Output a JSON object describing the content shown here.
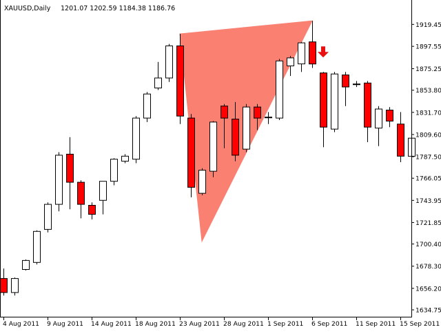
{
  "header": {
    "symbol": "XAUUSD,Daily",
    "ohlc": "1201.07 1202.59 1184.38 1186.76"
  },
  "colors": {
    "bull_body": "#ffffff",
    "bear_body": "#ff0000",
    "candle_outline": "#000000",
    "triangle_fill": "#fa8072",
    "arrow": "#e81010",
    "axis": "#000000",
    "background": "#ffffff"
  },
  "chart_data": {
    "type": "candlestick",
    "title": "",
    "xlabel": "",
    "ylabel": "",
    "ylim": [
      1634.75,
      1930
    ],
    "grid": false,
    "y_ticks": [
      "1919.45",
      "1897.55",
      "1875.25",
      "1853.80",
      "1831.70",
      "1809.60",
      "1787.50",
      "1766.05",
      "1743.95",
      "1721.85",
      "1700.40",
      "1678.30",
      "1656.20",
      "1634.75"
    ],
    "x_ticks": [
      {
        "label": "4 Aug 2011",
        "index": 0
      },
      {
        "label": "9 Aug 2011",
        "index": 4
      },
      {
        "label": "14 Aug 2011",
        "index": 8
      },
      {
        "label": "18 Aug 2011",
        "index": 12
      },
      {
        "label": "23 Aug 2011",
        "index": 16
      },
      {
        "label": "28 Aug 2011",
        "index": 20
      },
      {
        "label": "1 Sep 2011",
        "index": 24
      },
      {
        "label": "6 Sep 2011",
        "index": 28
      },
      {
        "label": "11 Sep 2011",
        "index": 32
      },
      {
        "label": "15 Sep 2011",
        "index": 36
      }
    ],
    "candles": [
      {
        "o": 1666,
        "h": 1676,
        "l": 1649,
        "c": 1652
      },
      {
        "o": 1652,
        "h": 1667,
        "l": 1649,
        "c": 1666
      },
      {
        "o": 1675,
        "h": 1685,
        "l": 1674,
        "c": 1684
      },
      {
        "o": 1682,
        "h": 1714,
        "l": 1680,
        "c": 1713
      },
      {
        "o": 1715,
        "h": 1742,
        "l": 1712,
        "c": 1740
      },
      {
        "o": 1740,
        "h": 1792,
        "l": 1733,
        "c": 1789
      },
      {
        "o": 1790,
        "h": 1807,
        "l": 1735,
        "c": 1762
      },
      {
        "o": 1762,
        "h": 1764,
        "l": 1726,
        "c": 1740
      },
      {
        "o": 1739,
        "h": 1742,
        "l": 1725,
        "c": 1730
      },
      {
        "o": 1744,
        "h": 1763,
        "l": 1730,
        "c": 1763
      },
      {
        "o": 1763,
        "h": 1786,
        "l": 1759,
        "c": 1785
      },
      {
        "o": 1783,
        "h": 1790,
        "l": 1781,
        "c": 1788
      },
      {
        "o": 1785,
        "h": 1828,
        "l": 1781,
        "c": 1826
      },
      {
        "o": 1826,
        "h": 1852,
        "l": 1822,
        "c": 1850
      },
      {
        "o": 1856,
        "h": 1882,
        "l": 1854,
        "c": 1866
      },
      {
        "o": 1866,
        "h": 1900,
        "l": 1862,
        "c": 1898
      },
      {
        "o": 1898,
        "h": 1910,
        "l": 1820,
        "c": 1828
      },
      {
        "o": 1826,
        "h": 1830,
        "l": 1747,
        "c": 1757
      },
      {
        "o": 1751,
        "h": 1776,
        "l": 1749,
        "c": 1774
      },
      {
        "o": 1773,
        "h": 1823,
        "l": 1767,
        "c": 1822
      },
      {
        "o": 1838,
        "h": 1840,
        "l": 1796,
        "c": 1826
      },
      {
        "o": 1825,
        "h": 1842,
        "l": 1783,
        "c": 1789
      },
      {
        "o": 1795,
        "h": 1840,
        "l": 1792,
        "c": 1837
      },
      {
        "o": 1837,
        "h": 1840,
        "l": 1814,
        "c": 1826
      },
      {
        "o": 1827,
        "h": 1832,
        "l": 1820,
        "c": 1827
      },
      {
        "o": 1826,
        "h": 1885,
        "l": 1824,
        "c": 1883
      },
      {
        "o": 1878,
        "h": 1888,
        "l": 1868,
        "c": 1886
      },
      {
        "o": 1880,
        "h": 1902,
        "l": 1872,
        "c": 1901
      },
      {
        "o": 1902,
        "h": 1923,
        "l": 1876,
        "c": 1880
      },
      {
        "o": 1871,
        "h": 1872,
        "l": 1797,
        "c": 1817
      },
      {
        "o": 1815,
        "h": 1872,
        "l": 1812,
        "c": 1870
      },
      {
        "o": 1869,
        "h": 1872,
        "l": 1838,
        "c": 1857
      },
      {
        "o": 1860,
        "h": 1863,
        "l": 1857,
        "c": 1860
      },
      {
        "o": 1861,
        "h": 1863,
        "l": 1802,
        "c": 1817
      },
      {
        "o": 1816,
        "h": 1838,
        "l": 1798,
        "c": 1835
      },
      {
        "o": 1834,
        "h": 1837,
        "l": 1817,
        "c": 1823
      },
      {
        "o": 1820,
        "h": 1832,
        "l": 1782,
        "c": 1788
      },
      {
        "o": 1788,
        "h": 1830,
        "l": 1760,
        "c": 1806
      }
    ],
    "triangle": [
      {
        "index": 16,
        "price": 1910
      },
      {
        "index": 28,
        "price": 1923
      },
      {
        "index": 18,
        "price": 1703
      }
    ],
    "arrow": {
      "index": 29,
      "price": 1892
    }
  }
}
